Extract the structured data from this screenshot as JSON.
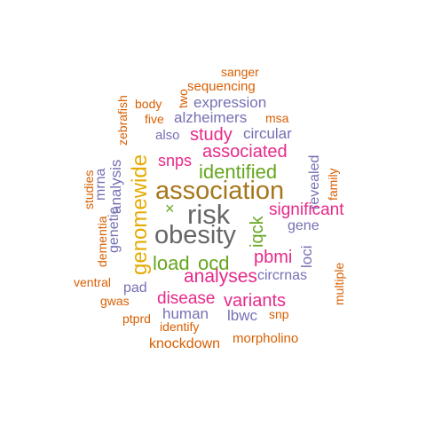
{
  "colors": {
    "orange": "#D95F02",
    "purple": "#7570B3",
    "magenta": "#E7298A",
    "green": "#66A61E",
    "gold": "#E6AB02",
    "brown": "#A6761D",
    "gray": "#666666",
    "teal": "#1B9E77"
  },
  "words": [
    {
      "text": "sanger",
      "color": "orange"
    },
    {
      "text": "zebrafish",
      "color": "orange"
    },
    {
      "text": "two",
      "color": "orange"
    },
    {
      "text": "sequencing",
      "color": "orange"
    },
    {
      "text": "body",
      "color": "orange"
    },
    {
      "text": "expression",
      "color": "purple"
    },
    {
      "text": "five",
      "color": "orange"
    },
    {
      "text": "alzheimers",
      "color": "purple"
    },
    {
      "text": "msa",
      "color": "orange"
    },
    {
      "text": "also",
      "color": "purple"
    },
    {
      "text": "study",
      "color": "magenta"
    },
    {
      "text": "circular",
      "color": "purple"
    },
    {
      "text": "genomewide",
      "color": "gold"
    },
    {
      "text": "associated",
      "color": "magenta"
    },
    {
      "text": "revealed",
      "color": "purple"
    },
    {
      "text": "studies",
      "color": "orange"
    },
    {
      "text": "mrna",
      "color": "purple"
    },
    {
      "text": "snps",
      "color": "magenta"
    },
    {
      "text": "identified",
      "color": "green"
    },
    {
      "text": "family",
      "color": "orange"
    },
    {
      "text": "genetic",
      "color": "purple"
    },
    {
      "text": "analysis",
      "color": "purple"
    },
    {
      "text": "association",
      "color": "brown"
    },
    {
      "text": "dementia",
      "color": "orange"
    },
    {
      "text": "×",
      "color": "green"
    },
    {
      "text": "risk",
      "color": "gray"
    },
    {
      "text": "iqck",
      "color": "green"
    },
    {
      "text": "significant",
      "color": "magenta"
    },
    {
      "text": "obesity",
      "color": "gray"
    },
    {
      "text": "gene",
      "color": "purple"
    },
    {
      "text": "loci",
      "color": "purple"
    },
    {
      "text": "load",
      "color": "green"
    },
    {
      "text": "ocd",
      "color": "green"
    },
    {
      "text": "pbmi",
      "color": "magenta"
    },
    {
      "text": "multiple",
      "color": "orange"
    },
    {
      "text": "analyses",
      "color": "magenta"
    },
    {
      "text": "circrnas",
      "color": "purple"
    },
    {
      "text": "ventral",
      "color": "orange"
    },
    {
      "text": "pad",
      "color": "purple"
    },
    {
      "text": "disease",
      "color": "magenta"
    },
    {
      "text": "variants",
      "color": "magenta"
    },
    {
      "text": "gwas",
      "color": "orange"
    },
    {
      "text": "human",
      "color": "purple"
    },
    {
      "text": "lbwc",
      "color": "purple"
    },
    {
      "text": "snp",
      "color": "orange"
    },
    {
      "text": "ptprd",
      "color": "orange"
    },
    {
      "text": "identify",
      "color": "orange"
    },
    {
      "text": "knockdown",
      "color": "orange"
    },
    {
      "text": "morpholino",
      "color": "orange"
    }
  ]
}
